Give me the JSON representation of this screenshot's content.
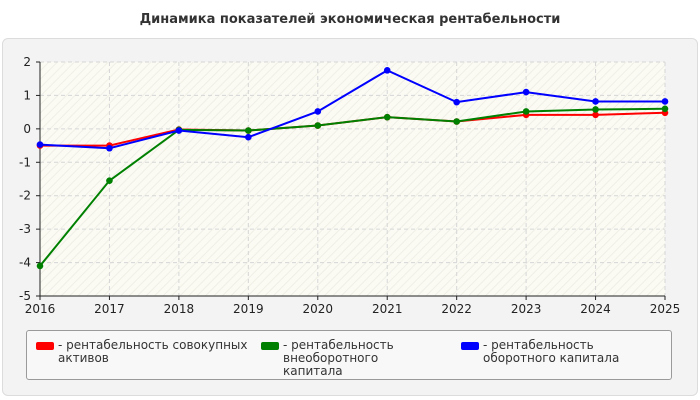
{
  "chart_data": {
    "type": "line",
    "title": "Динамика показателей экономическая рентабельности",
    "x": [
      "2016",
      "2017",
      "2018",
      "2019",
      "2020",
      "2021",
      "2022",
      "2023",
      "2024",
      "2025"
    ],
    "ylim": [
      -5,
      2
    ],
    "yticks": [
      2,
      1,
      0,
      -1,
      -2,
      -3,
      -4,
      -5
    ],
    "grid": true,
    "legend_position": "bottom",
    "series": [
      {
        "name": "- рентабельность совокупных активов",
        "color": "#ff0000",
        "values": [
          -0.5,
          -0.5,
          -0.02,
          -0.05,
          0.1,
          0.35,
          0.22,
          0.42,
          0.42,
          0.48
        ]
      },
      {
        "name": "- рентабельность внеоборотного капитала",
        "color": "#008000",
        "values": [
          -4.1,
          -1.55,
          -0.03,
          -0.05,
          0.1,
          0.35,
          0.22,
          0.52,
          0.58,
          0.6
        ]
      },
      {
        "name": "- рентабельность оборотного капитала",
        "color": "#0000ff",
        "values": [
          -0.47,
          -0.58,
          -0.05,
          -0.25,
          0.52,
          1.75,
          0.8,
          1.1,
          0.82,
          0.82
        ]
      }
    ]
  },
  "legend": {
    "items": [
      {
        "label": "- рентабельность совокупных активов"
      },
      {
        "label": "- рентабельность внеоборотного капитала"
      },
      {
        "label": "- рентабельность оборотного капитала"
      }
    ]
  }
}
